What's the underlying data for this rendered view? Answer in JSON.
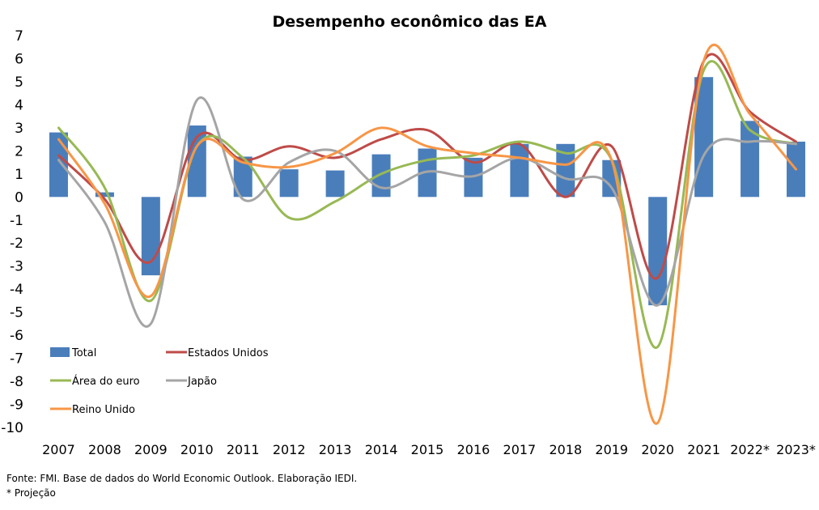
{
  "chart_data": {
    "type": "bar",
    "title": "Desempenho econômico das EA",
    "categories": [
      "2007",
      "2008",
      "2009",
      "2010",
      "2011",
      "2012",
      "2013",
      "2014",
      "2015",
      "2016",
      "2017",
      "2018",
      "2019",
      "2020",
      "2021",
      "2022*",
      "2023*"
    ],
    "ylim": [
      -10,
      7
    ],
    "yticks": [
      7,
      6,
      5,
      4,
      3,
      2,
      1,
      0,
      -1,
      -2,
      -3,
      -4,
      -5,
      -6,
      -7,
      -8,
      -9,
      -10
    ],
    "grid": false,
    "legend_position": "bottom-left",
    "bar_series": {
      "name": "Total",
      "color": "#4a7ebb",
      "values": [
        2.8,
        0.2,
        -3.4,
        3.1,
        1.75,
        1.2,
        1.15,
        1.85,
        2.1,
        1.7,
        2.3,
        2.3,
        1.6,
        -4.7,
        5.2,
        3.3,
        2.4
      ]
    },
    "line_series": [
      {
        "name": "Estados Unidos",
        "color": "#be4b48",
        "values": [
          1.8,
          -0.1,
          -2.8,
          2.6,
          1.6,
          2.2,
          1.7,
          2.5,
          2.9,
          1.5,
          2.3,
          0.0,
          2.2,
          -3.5,
          5.9,
          3.7,
          2.4
        ]
      },
      {
        "name": "Área do euro",
        "color": "#98b954",
        "values": [
          3.0,
          0.4,
          -4.5,
          2.2,
          1.7,
          -0.9,
          -0.2,
          1.0,
          1.6,
          1.8,
          2.4,
          1.9,
          1.6,
          -6.5,
          5.5,
          2.9,
          2.3
        ]
      },
      {
        "name": "Japão",
        "color": "#a5a5a5",
        "values": [
          1.6,
          -1.1,
          -5.5,
          4.2,
          -0.1,
          1.5,
          2.0,
          0.4,
          1.1,
          0.9,
          1.7,
          0.8,
          0.4,
          -4.7,
          1.8,
          2.4,
          2.3
        ]
      },
      {
        "name": "Reino Unido",
        "color": "#f79646",
        "values": [
          2.5,
          -0.3,
          -4.3,
          2.2,
          1.5,
          1.3,
          1.9,
          3.0,
          2.2,
          1.9,
          1.7,
          1.4,
          1.6,
          -9.8,
          5.9,
          3.6,
          1.2
        ]
      }
    ]
  },
  "footnotes": {
    "source": "Fonte: FMI. Base de dados do World Economic Outlook. Elaboração IEDI.",
    "note": "* Projeção"
  }
}
